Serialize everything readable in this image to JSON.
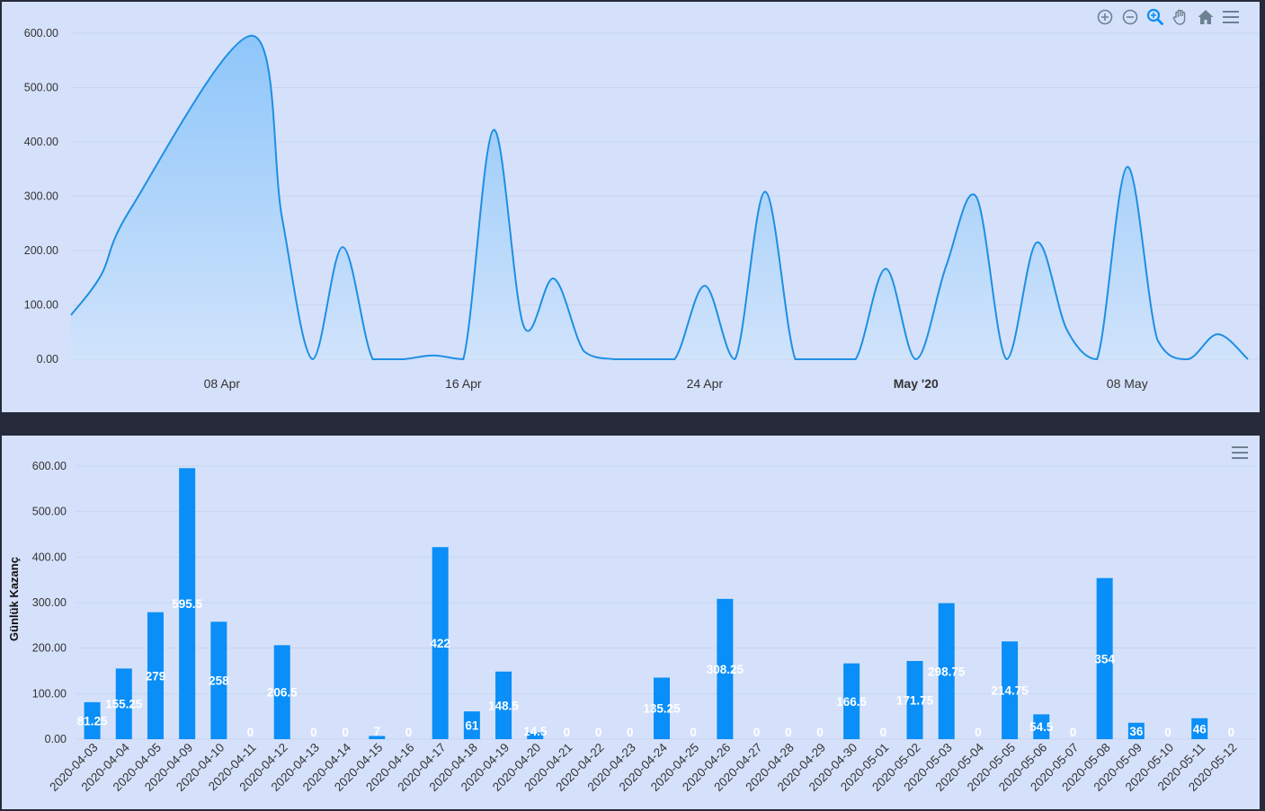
{
  "colors": {
    "panel_bg": "#d5e1fb",
    "page_bg": "#262a3b",
    "line": "#1e8fe3",
    "area_top": "#8ec6fa",
    "area_bottom": "#d0e3fb",
    "bar": "#0a8ef7",
    "grid": "#c8d5ef",
    "data_label": "#ffffff"
  },
  "toolbar_area": {
    "icons": [
      "zoom-in-icon",
      "zoom-out-icon",
      "selection-zoom-icon",
      "pan-hand-icon",
      "home-reset-icon",
      "menu-icon"
    ]
  },
  "toolbar_bar": {
    "icons": [
      "menu-icon"
    ]
  },
  "chart_data": [
    {
      "type": "area",
      "title": "",
      "xlabel": "",
      "ylabel": "",
      "x_axis": "datetime",
      "x_tick_labels": [
        "08 Apr",
        "16 Apr",
        "24 Apr",
        "May '20",
        "08 May"
      ],
      "y_ticks": [
        "0.00",
        "100.00",
        "200.00",
        "300.00",
        "400.00",
        "500.00",
        "600.00"
      ],
      "ylim": [
        0,
        600
      ],
      "curve": "smooth",
      "series": [
        {
          "x": [
            "2020-04-03",
            "2020-04-04",
            "2020-04-05",
            "2020-04-09",
            "2020-04-10",
            "2020-04-11",
            "2020-04-12",
            "2020-04-13",
            "2020-04-14",
            "2020-04-15",
            "2020-04-16",
            "2020-04-17",
            "2020-04-18",
            "2020-04-19",
            "2020-04-20",
            "2020-04-21",
            "2020-04-22",
            "2020-04-23",
            "2020-04-24",
            "2020-04-25",
            "2020-04-26",
            "2020-04-27",
            "2020-04-28",
            "2020-04-29",
            "2020-04-30",
            "2020-05-01",
            "2020-05-02",
            "2020-05-03",
            "2020-05-04",
            "2020-05-05",
            "2020-05-06",
            "2020-05-07",
            "2020-05-08",
            "2020-05-09",
            "2020-05-10",
            "2020-05-11",
            "2020-05-12"
          ],
          "values": [
            81.25,
            155.25,
            279,
            595.5,
            258,
            0,
            206.5,
            0,
            0,
            7,
            0,
            422,
            61,
            148.5,
            14.5,
            0,
            0,
            0,
            135.25,
            0,
            308.25,
            0,
            0,
            0,
            166.5,
            0,
            171.75,
            298.75,
            0,
            214.75,
            54.5,
            0,
            354,
            36,
            0,
            46,
            0
          ]
        }
      ]
    },
    {
      "type": "bar",
      "title": "",
      "xlabel": "",
      "ylabel": "Günlük Kazanç",
      "y_ticks": [
        "0.00",
        "100.00",
        "200.00",
        "300.00",
        "400.00",
        "500.00",
        "600.00"
      ],
      "ylim": [
        0,
        600
      ],
      "categories": [
        "2020-04-03",
        "2020-04-04",
        "2020-04-05",
        "2020-04-09",
        "2020-04-10",
        "2020-04-11",
        "2020-04-12",
        "2020-04-13",
        "2020-04-14",
        "2020-04-15",
        "2020-04-16",
        "2020-04-17",
        "2020-04-18",
        "2020-04-19",
        "2020-04-20",
        "2020-04-21",
        "2020-04-22",
        "2020-04-23",
        "2020-04-24",
        "2020-04-25",
        "2020-04-26",
        "2020-04-27",
        "2020-04-28",
        "2020-04-29",
        "2020-04-30",
        "2020-05-01",
        "2020-05-02",
        "2020-05-03",
        "2020-05-04",
        "2020-05-05",
        "2020-05-06",
        "2020-05-07",
        "2020-05-08",
        "2020-05-09",
        "2020-05-10",
        "2020-05-11",
        "2020-05-12"
      ],
      "values": [
        81.25,
        155.25,
        279,
        595.5,
        258,
        0,
        206.5,
        0,
        0,
        7,
        0,
        422,
        61,
        148.5,
        14.5,
        0,
        0,
        0,
        135.25,
        0,
        308.25,
        0,
        0,
        0,
        166.5,
        0,
        171.75,
        298.75,
        0,
        214.75,
        54.5,
        0,
        354,
        36,
        0,
        46,
        0
      ],
      "data_labels": [
        "81.25",
        "155.25",
        "279",
        "595.5",
        "258",
        "0",
        "206.5",
        "0",
        "0",
        "7",
        "0",
        "422",
        "61",
        "148.5",
        "14.5",
        "0",
        "0",
        "0",
        "135.25",
        "0",
        "308.25",
        "0",
        "0",
        "0",
        "166.5",
        "0",
        "171.75",
        "298.75",
        "0",
        "214.75",
        "54.5",
        "0",
        "354",
        "36",
        "0",
        "46",
        "0"
      ]
    }
  ]
}
